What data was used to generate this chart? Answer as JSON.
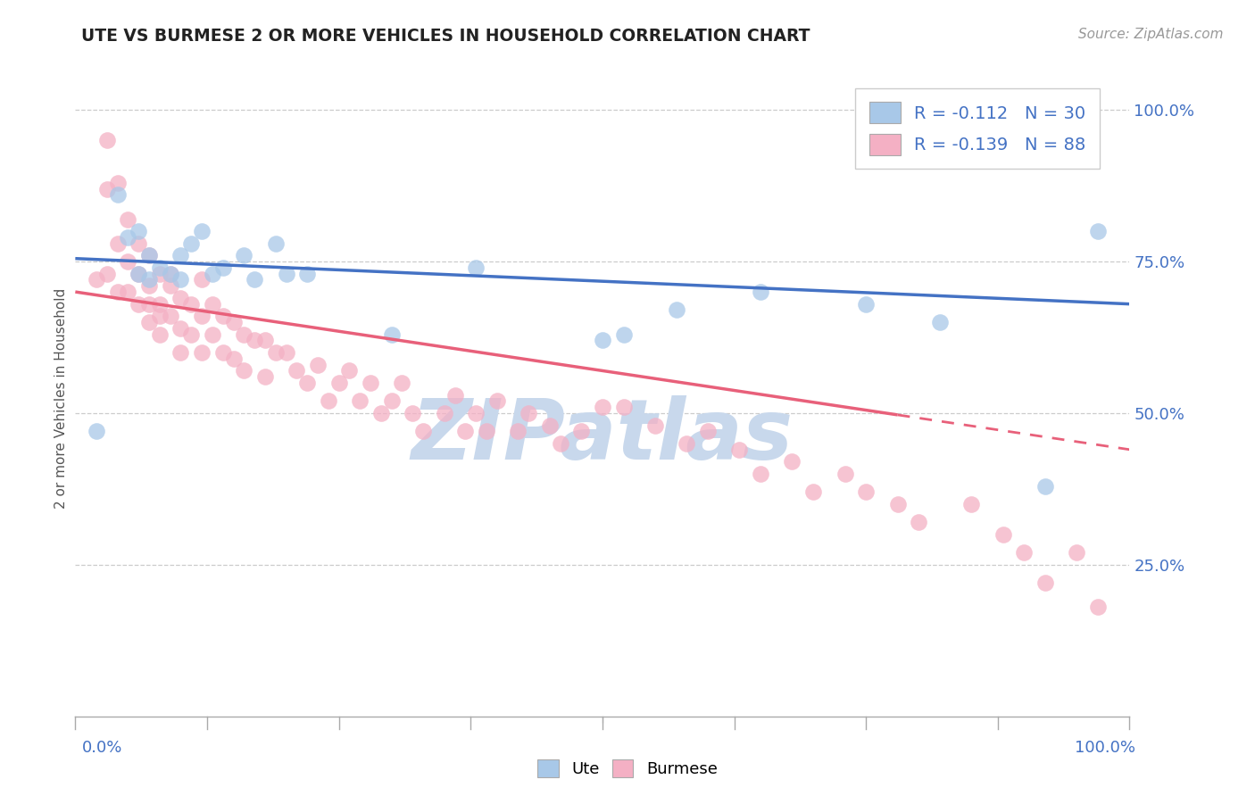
{
  "title": "UTE VS BURMESE 2 OR MORE VEHICLES IN HOUSEHOLD CORRELATION CHART",
  "source": "Source: ZipAtlas.com",
  "ylabel": "2 or more Vehicles in Household",
  "legend_R": [
    -0.112,
    -0.139
  ],
  "legend_N": [
    30,
    88
  ],
  "ute_color": "#a8c8e8",
  "burmese_color": "#f4b0c4",
  "ute_line_color": "#4472c4",
  "burmese_line_color": "#e8607a",
  "watermark_text": "ZIPatlas",
  "watermark_color": "#c8d8ec",
  "ytick_values": [
    0.25,
    0.5,
    0.75,
    1.0
  ],
  "ytick_labels": [
    "25.0%",
    "50.0%",
    "75.0%",
    "100.0%"
  ],
  "xlim": [
    0.0,
    1.0
  ],
  "ylim": [
    0.0,
    1.05
  ],
  "ute_x": [
    0.02,
    0.04,
    0.05,
    0.06,
    0.06,
    0.07,
    0.07,
    0.08,
    0.09,
    0.1,
    0.1,
    0.11,
    0.12,
    0.13,
    0.14,
    0.16,
    0.17,
    0.19,
    0.2,
    0.22,
    0.3,
    0.38,
    0.5,
    0.52,
    0.57,
    0.65,
    0.75,
    0.82,
    0.92,
    0.97
  ],
  "ute_y": [
    0.47,
    0.86,
    0.79,
    0.8,
    0.73,
    0.76,
    0.72,
    0.74,
    0.73,
    0.76,
    0.72,
    0.78,
    0.8,
    0.73,
    0.74,
    0.76,
    0.72,
    0.78,
    0.73,
    0.73,
    0.63,
    0.74,
    0.62,
    0.63,
    0.67,
    0.7,
    0.68,
    0.65,
    0.38,
    0.8
  ],
  "burmese_x": [
    0.02,
    0.03,
    0.03,
    0.04,
    0.04,
    0.05,
    0.05,
    0.06,
    0.06,
    0.06,
    0.07,
    0.07,
    0.07,
    0.08,
    0.08,
    0.08,
    0.09,
    0.09,
    0.09,
    0.1,
    0.1,
    0.1,
    0.11,
    0.11,
    0.12,
    0.12,
    0.12,
    0.13,
    0.13,
    0.14,
    0.14,
    0.15,
    0.15,
    0.16,
    0.16,
    0.17,
    0.18,
    0.18,
    0.19,
    0.2,
    0.21,
    0.22,
    0.23,
    0.24,
    0.25,
    0.26,
    0.27,
    0.28,
    0.29,
    0.3,
    0.31,
    0.32,
    0.33,
    0.35,
    0.36,
    0.37,
    0.38,
    0.39,
    0.4,
    0.42,
    0.43,
    0.45,
    0.46,
    0.48,
    0.5,
    0.52,
    0.55,
    0.58,
    0.6,
    0.63,
    0.65,
    0.68,
    0.7,
    0.73,
    0.75,
    0.78,
    0.8,
    0.85,
    0.88,
    0.9,
    0.92,
    0.95,
    0.97,
    0.03,
    0.04,
    0.05,
    0.07,
    0.08
  ],
  "burmese_y": [
    0.72,
    0.95,
    0.87,
    0.88,
    0.78,
    0.82,
    0.75,
    0.78,
    0.73,
    0.68,
    0.76,
    0.71,
    0.65,
    0.73,
    0.68,
    0.63,
    0.71,
    0.66,
    0.73,
    0.69,
    0.64,
    0.6,
    0.68,
    0.63,
    0.72,
    0.66,
    0.6,
    0.68,
    0.63,
    0.66,
    0.6,
    0.65,
    0.59,
    0.63,
    0.57,
    0.62,
    0.62,
    0.56,
    0.6,
    0.6,
    0.57,
    0.55,
    0.58,
    0.52,
    0.55,
    0.57,
    0.52,
    0.55,
    0.5,
    0.52,
    0.55,
    0.5,
    0.47,
    0.5,
    0.53,
    0.47,
    0.5,
    0.47,
    0.52,
    0.47,
    0.5,
    0.48,
    0.45,
    0.47,
    0.51,
    0.51,
    0.48,
    0.45,
    0.47,
    0.44,
    0.4,
    0.42,
    0.37,
    0.4,
    0.37,
    0.35,
    0.32,
    0.35,
    0.3,
    0.27,
    0.22,
    0.27,
    0.18,
    0.73,
    0.7,
    0.7,
    0.68,
    0.66
  ]
}
